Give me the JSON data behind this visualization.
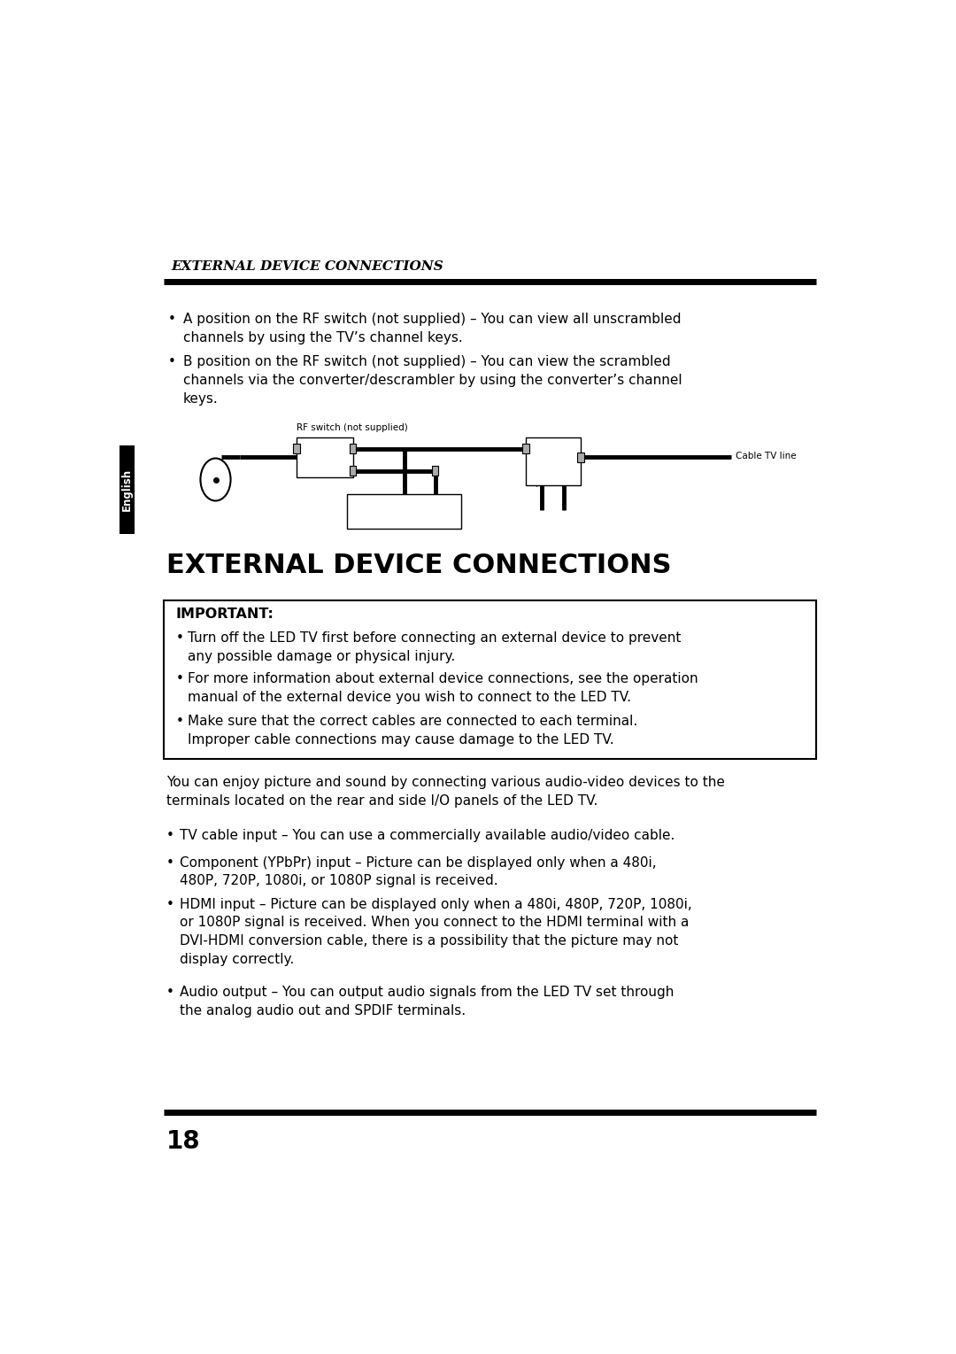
{
  "bg_color": "#ffffff",
  "page_width": 10.8,
  "page_height": 15.29,
  "top_italic_header": "EXTERNAL DEVICE CONNECTIONS",
  "bullet_points_top_lines": [
    [
      "A position on the RF switch (not supplied) – You can view all unscrambled",
      "channels by using the TV’s channel keys."
    ],
    [
      "B position on the RF switch (not supplied) – You can view the scrambled",
      "channels via the converter/descrambler by using the converter’s channel",
      "keys."
    ]
  ],
  "section_heading": "EXTERNAL DEVICE CONNECTIONS",
  "important_label": "IMPORTANT:",
  "important_bullet_lines": [
    [
      "Turn off the LED TV first before connecting an external device to prevent",
      "any possible damage or physical injury."
    ],
    [
      "For more information about external device connections, see the operation",
      "manual of the external device you wish to connect to the LED TV."
    ],
    [
      "Make sure that the correct cables are connected to each terminal.",
      "Improper cable connections may cause damage to the LED TV."
    ]
  ],
  "paragraph_lines": [
    "You can enjoy picture and sound by connecting various audio-video devices to the",
    "terminals located on the rear and side I/O panels of the LED TV."
  ],
  "bottom_bullet_lines": [
    [
      "TV cable input – You can use a commercially available audio/video cable."
    ],
    [
      "Component (YPbPr) input – Picture can be displayed only when a 480i,",
      "480P, 720P, 1080i, or 1080P signal is received."
    ],
    [
      "HDMI input – Picture can be displayed only when a 480i, 480P, 720P, 1080i,",
      "or 1080P signal is received. When you connect to the HDMI terminal with a",
      "DVI-HDMI conversion cable, there is a possibility that the picture may not",
      "display correctly."
    ],
    [
      "Audio output – You can output audio signals from the LED TV set through",
      "the analog audio out and SPDIF terminals."
    ]
  ],
  "page_number": "18",
  "english_tab_text": "English",
  "english_tab_color": "#000000",
  "english_tab_text_color": "#ffffff"
}
